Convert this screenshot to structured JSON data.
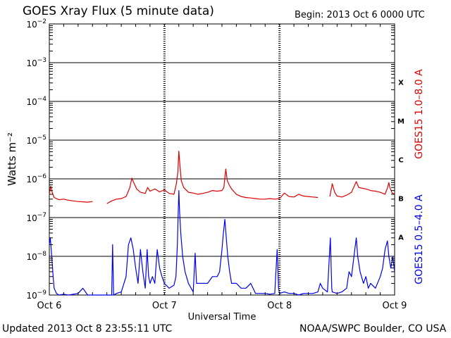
{
  "header": {
    "title": "GOES Xray Flux (5 minute data)",
    "begin": "Begin:  2013 Oct 6 0000 UTC"
  },
  "footer": {
    "updated": "Updated 2013 Oct  8 23:55:11 UTC",
    "source": "NOAA/SWPC Boulder, CO USA"
  },
  "colors": {
    "long_channel": "#dd0000",
    "short_channel": "#0000ee",
    "grid": "#000000",
    "background": "#ffffff"
  },
  "chart_data": {
    "type": "line",
    "title": "GOES Xray Flux (5 minute data)",
    "xlabel": "Universal Time",
    "ylabel": "Watts m⁻²",
    "y_scale": "log",
    "ylim": [
      1e-09,
      0.01
    ],
    "xlim_hours": [
      0,
      72
    ],
    "x_ticks": [
      {
        "hour": 0,
        "label": "Oct 6"
      },
      {
        "hour": 24,
        "label": "Oct 7"
      },
      {
        "hour": 48,
        "label": "Oct 8"
      },
      {
        "hour": 72,
        "label": "Oct 9"
      }
    ],
    "y_ticks": [
      {
        "exp": -9,
        "value": 1e-09
      },
      {
        "exp": -8,
        "value": 1e-08
      },
      {
        "exp": -7,
        "value": 1e-07
      },
      {
        "exp": -6,
        "value": 1e-06
      },
      {
        "exp": -5,
        "value": 1e-05
      },
      {
        "exp": -4,
        "value": 0.0001
      },
      {
        "exp": -3,
        "value": 0.001
      },
      {
        "exp": -2,
        "value": 0.01
      }
    ],
    "flare_classes": [
      {
        "label": "A",
        "value": 1e-08
      },
      {
        "label": "B",
        "value": 1e-07
      },
      {
        "label": "C",
        "value": 1e-06
      },
      {
        "label": "M",
        "value": 1e-05
      },
      {
        "label": "X",
        "value": 0.0001
      }
    ],
    "grid": true,
    "legend": "right side, vertical",
    "series": [
      {
        "name": "GOES15 1.0–8.0 A",
        "color": "#dd0000",
        "points": [
          [
            0.0,
            4e-07
          ],
          [
            0.3,
            6.5e-07
          ],
          [
            0.6,
            4.5e-07
          ],
          [
            1.0,
            3.3e-07
          ],
          [
            2.0,
            2.9e-07
          ],
          [
            3.0,
            3e-07
          ],
          [
            4.0,
            2.8e-07
          ],
          [
            5.0,
            2.7e-07
          ],
          [
            6.0,
            2.6e-07
          ],
          [
            7.0,
            2.55e-07
          ],
          [
            8.0,
            2.5e-07
          ],
          [
            9.0,
            2.6e-07
          ],
          null,
          [
            12.0,
            2.3e-07
          ],
          [
            13.0,
            2.7e-07
          ],
          [
            14.0,
            3e-07
          ],
          [
            15.0,
            3.1e-07
          ],
          [
            16.0,
            3.5e-07
          ],
          [
            16.8,
            6e-07
          ],
          [
            17.2,
            1.05e-06
          ],
          [
            17.6,
            8e-07
          ],
          [
            18.2,
            5.5e-07
          ],
          [
            19.0,
            4.5e-07
          ],
          [
            20.0,
            4.2e-07
          ],
          [
            20.5,
            6e-07
          ],
          [
            21.0,
            4.8e-07
          ],
          [
            22.0,
            5.5e-07
          ],
          [
            23.0,
            4.6e-07
          ],
          [
            24.0,
            5.2e-07
          ],
          [
            25.0,
            4.2e-07
          ],
          [
            26.0,
            4e-07
          ],
          [
            26.5,
            7.5e-07
          ],
          [
            26.8,
            1.5e-06
          ],
          [
            27.0,
            5.2e-06
          ],
          [
            27.2,
            2.5e-06
          ],
          [
            27.5,
            9e-07
          ],
          [
            28.0,
            6e-07
          ],
          [
            29.0,
            4.5e-07
          ],
          [
            30.0,
            4.3e-07
          ],
          [
            31.0,
            4e-07
          ],
          [
            32.0,
            4.2e-07
          ],
          [
            33.0,
            4.5e-07
          ],
          [
            34.0,
            5e-07
          ],
          [
            35.0,
            4.8e-07
          ],
          [
            36.0,
            5e-07
          ],
          [
            36.4,
            6e-07
          ],
          [
            36.8,
            1.8e-06
          ],
          [
            37.1,
            9e-07
          ],
          [
            37.5,
            7e-07
          ],
          [
            38.0,
            5.5e-07
          ],
          [
            39.0,
            4e-07
          ],
          [
            40.0,
            3.5e-07
          ],
          [
            41.0,
            3.3e-07
          ],
          [
            42.0,
            3.2e-07
          ],
          [
            43.0,
            3.1e-07
          ],
          [
            44.0,
            3e-07
          ],
          [
            45.0,
            3e-07
          ],
          [
            46.0,
            3.1e-07
          ],
          [
            47.0,
            3e-07
          ],
          [
            48.0,
            3.1e-07
          ],
          [
            49.0,
            4.3e-07
          ],
          [
            50.0,
            3.5e-07
          ],
          [
            51.0,
            3.4e-07
          ],
          [
            52.0,
            4e-07
          ],
          [
            53.0,
            3.6e-07
          ],
          [
            54.0,
            3.5e-07
          ],
          [
            55.0,
            3.4e-07
          ],
          [
            56.0,
            3.3e-07
          ],
          null,
          [
            58.5,
            3.5e-07
          ],
          [
            59.0,
            7.5e-07
          ],
          [
            59.5,
            4.5e-07
          ],
          [
            60.0,
            3.6e-07
          ],
          [
            61.0,
            3.4e-07
          ],
          [
            62.0,
            3.8e-07
          ],
          [
            63.0,
            4.5e-07
          ],
          [
            64.0,
            8.5e-07
          ],
          [
            64.5,
            6e-07
          ],
          [
            65.0,
            5.8e-07
          ],
          [
            66.0,
            5.5e-07
          ],
          [
            67.0,
            5e-07
          ],
          [
            68.0,
            4.8e-07
          ],
          [
            69.0,
            4.5e-07
          ],
          [
            70.0,
            4e-07
          ],
          [
            70.5,
            5.8e-07
          ],
          [
            70.8,
            8e-07
          ],
          [
            71.0,
            6e-07
          ],
          [
            71.5,
            4.3e-07
          ],
          [
            72.0,
            4e-07
          ]
        ]
      },
      {
        "name": "GOES15 0.5–4.0 A",
        "color": "#0000ee",
        "points": [
          [
            0.0,
            2e-08
          ],
          [
            0.2,
            3e-08
          ],
          [
            0.5,
            1e-08
          ],
          [
            0.8,
            3e-09
          ],
          [
            1.0,
            1.5e-09
          ],
          [
            1.5,
            1.1e-09
          ],
          [
            2.0,
            1e-09
          ],
          [
            3.0,
            1.05e-09
          ],
          [
            4.0,
            1e-09
          ],
          [
            5.0,
            1.05e-09
          ],
          [
            6.0,
            1.1e-09
          ],
          [
            7.0,
            1.5e-09
          ],
          [
            8.0,
            1e-09
          ],
          [
            9.0,
            1e-09
          ],
          [
            10.0,
            1e-09
          ],
          [
            11.0,
            1e-09
          ],
          [
            12.0,
            1e-09
          ],
          [
            13.0,
            1e-09
          ],
          [
            13.2,
            2e-08
          ],
          [
            13.4,
            1e-09
          ],
          [
            14.0,
            1.1e-09
          ],
          [
            15.0,
            1.2e-09
          ],
          [
            16.0,
            3e-09
          ],
          [
            16.5,
            2e-08
          ],
          [
            17.0,
            3e-08
          ],
          [
            17.5,
            1.5e-08
          ],
          [
            18.0,
            5e-09
          ],
          [
            18.5,
            2e-09
          ],
          [
            19.0,
            1.5e-08
          ],
          [
            19.5,
            4e-09
          ],
          [
            20.0,
            1.5e-09
          ],
          [
            20.4,
            1.5e-08
          ],
          [
            20.7,
            3e-09
          ],
          [
            21.0,
            2e-09
          ],
          [
            21.5,
            3e-09
          ],
          [
            22.0,
            2e-09
          ],
          [
            22.5,
            1.5e-08
          ],
          [
            23.0,
            5e-09
          ],
          [
            23.5,
            3e-09
          ],
          [
            24.0,
            2e-09
          ],
          [
            25.0,
            1.5e-09
          ],
          [
            26.0,
            1.8e-09
          ],
          [
            26.4,
            3e-09
          ],
          [
            26.7,
            2e-08
          ],
          [
            26.85,
            1e-07
          ],
          [
            27.0,
            5e-07
          ],
          [
            27.15,
            1.5e-07
          ],
          [
            27.4,
            4e-08
          ],
          [
            27.8,
            1e-08
          ],
          [
            28.3,
            4e-09
          ],
          [
            29.0,
            2e-09
          ],
          [
            30.0,
            1.2e-09
          ],
          [
            30.4,
            1.2e-08
          ],
          [
            30.7,
            2e-09
          ],
          [
            31.0,
            2e-09
          ],
          [
            32.0,
            2e-09
          ],
          [
            33.0,
            2e-09
          ],
          [
            34.0,
            3e-09
          ],
          [
            35.0,
            3e-09
          ],
          [
            35.5,
            4e-09
          ],
          [
            36.0,
            1.5e-08
          ],
          [
            36.3,
            4e-08
          ],
          [
            36.6,
            9e-08
          ],
          [
            36.9,
            3e-08
          ],
          [
            37.2,
            1e-08
          ],
          [
            37.6,
            4e-09
          ],
          [
            38.0,
            2e-09
          ],
          [
            39.0,
            2e-09
          ],
          [
            40.0,
            1.5e-09
          ],
          [
            41.0,
            1.5e-09
          ],
          [
            42.0,
            2e-09
          ],
          [
            43.0,
            1.1e-09
          ],
          [
            44.0,
            1.1e-09
          ],
          [
            45.0,
            1.1e-09
          ],
          [
            46.0,
            1.05e-09
          ],
          [
            47.0,
            1.1e-09
          ],
          [
            47.5,
            1.5e-08
          ],
          [
            47.8,
            1.5e-09
          ],
          [
            48.0,
            1.1e-09
          ],
          [
            49.0,
            1.2e-09
          ],
          [
            50.0,
            1.1e-09
          ],
          [
            51.0,
            1.1e-09
          ],
          [
            52.0,
            1e-09
          ],
          [
            53.0,
            1.1e-09
          ],
          [
            54.0,
            1.1e-09
          ],
          [
            55.0,
            1.1e-09
          ],
          [
            56.0,
            1.2e-09
          ],
          [
            56.5,
            2e-09
          ],
          [
            57.0,
            1.5e-09
          ],
          [
            58.0,
            1.2e-09
          ],
          [
            58.6,
            3e-08
          ],
          [
            58.9,
            1.5e-09
          ],
          [
            59.0,
            1.2e-09
          ],
          [
            60.0,
            1.1e-09
          ],
          [
            61.0,
            1.2e-09
          ],
          [
            62.0,
            1.5e-09
          ],
          [
            62.5,
            4e-09
          ],
          [
            63.0,
            3e-09
          ],
          [
            63.7,
            1.5e-08
          ],
          [
            64.0,
            3e-08
          ],
          [
            64.3,
            1e-08
          ],
          [
            64.8,
            4e-09
          ],
          [
            65.5,
            2e-09
          ],
          [
            66.0,
            3e-09
          ],
          [
            66.5,
            1.5e-09
          ],
          [
            67.0,
            2e-09
          ],
          [
            68.0,
            1.5e-09
          ],
          [
            69.0,
            3e-09
          ],
          [
            69.5,
            5e-09
          ],
          [
            70.0,
            1.5e-08
          ],
          [
            70.5,
            2.5e-08
          ],
          [
            70.8,
            1e-08
          ],
          [
            71.2,
            5e-09
          ],
          [
            71.6,
            1e-08
          ],
          [
            72.0,
            4e-09
          ]
        ]
      }
    ]
  }
}
